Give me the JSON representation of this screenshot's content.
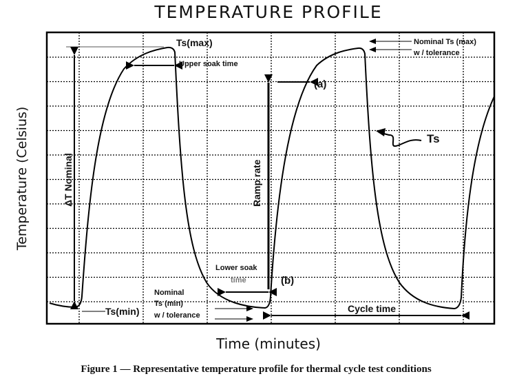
{
  "title": "TEMPERATURE PROFILE",
  "y_axis_label": "Temperature (Celsius)",
  "x_axis_label": "Time (minutes)",
  "caption": "Figure 1 — Representative temperature profile for thermal cycle test conditions",
  "annotations": {
    "ts_max": "Ts(max)",
    "upper_soak": "Upper soak time",
    "delta_t": "ΔT Nominal",
    "ramp_rate": "Ramp rate",
    "a": "(a)",
    "b": "(b)",
    "ts": "Ts",
    "nominal_max_1": "Nominal Ts (max)",
    "nominal_max_2": "w / tolerance",
    "lower_soak_1": "Lower soak",
    "lower_soak_2": "time",
    "nominal_min_1": "Nominal",
    "nominal_min_2": "Ts (min)",
    "nominal_min_3": "w / tolerance",
    "ts_min": "Ts(min)",
    "cycle_time": "Cycle time"
  }
}
